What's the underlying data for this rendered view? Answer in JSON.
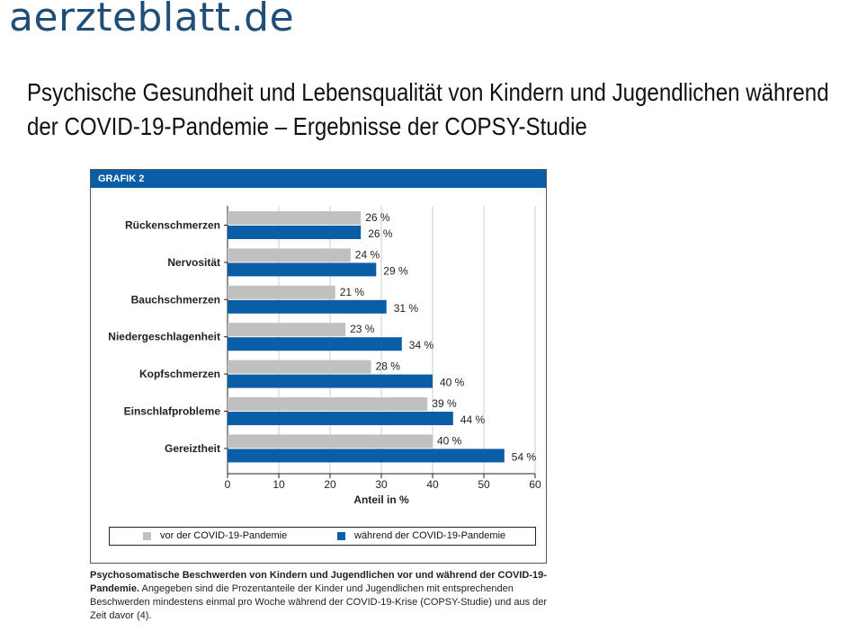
{
  "site": {
    "logo_text": "aerzteblatt.de"
  },
  "article": {
    "title_line1": "Psychische Gesundheit und Lebensqualität von Kindern und Jugendlichen während",
    "title_line2": "der COVID-19-Pandemie – Ergebnisse der COPSY-Studie"
  },
  "figure": {
    "label": "GRAFIK 2",
    "caption_bold": "Psychosomatische Beschwerden von Kindern und Jugendlichen vor und während der COVID-19-Pandemie.",
    "caption_text": " Angegeben sind die Prozentanteile der Kinder und Jugendlichen mit entsprechenden Beschwerden mindestens einmal pro Woche während der COVID-19-Krise (COPSY-Studie) und aus der Zeit davor (4)."
  },
  "colors": {
    "before": "#c0c0c0",
    "during": "#0a5ea5",
    "header": "#0a5ea5",
    "grid": "#cccccc"
  },
  "chart_data": {
    "type": "bar",
    "orientation": "horizontal",
    "categories": [
      "Rückenschmerzen",
      "Nervosität",
      "Bauchschmerzen",
      "Niedergeschlagenheit",
      "Kopfschmerzen",
      "Einschlafprobleme",
      "Gereiztheit"
    ],
    "series": [
      {
        "name": "vor der COVID-19-Pandemie",
        "values": [
          26,
          24,
          21,
          23,
          28,
          39,
          40
        ],
        "labels": [
          "26 %",
          "24 %",
          "21 %",
          "23 %",
          "28 %",
          "39 %",
          "40 %"
        ]
      },
      {
        "name": "während der COVID-19-Pandemie",
        "values": [
          26,
          29,
          31,
          34,
          40,
          44,
          54
        ],
        "labels": [
          "26 %",
          "29 %",
          "31 %",
          "34 %",
          "40 %",
          "44 %",
          "54 %"
        ]
      }
    ],
    "xlabel": "Anteil in %",
    "xlim": [
      0,
      60
    ],
    "xticks": [
      "0",
      "10",
      "20",
      "30",
      "40",
      "50",
      "60"
    ],
    "grid": true,
    "legend_position": "bottom"
  }
}
